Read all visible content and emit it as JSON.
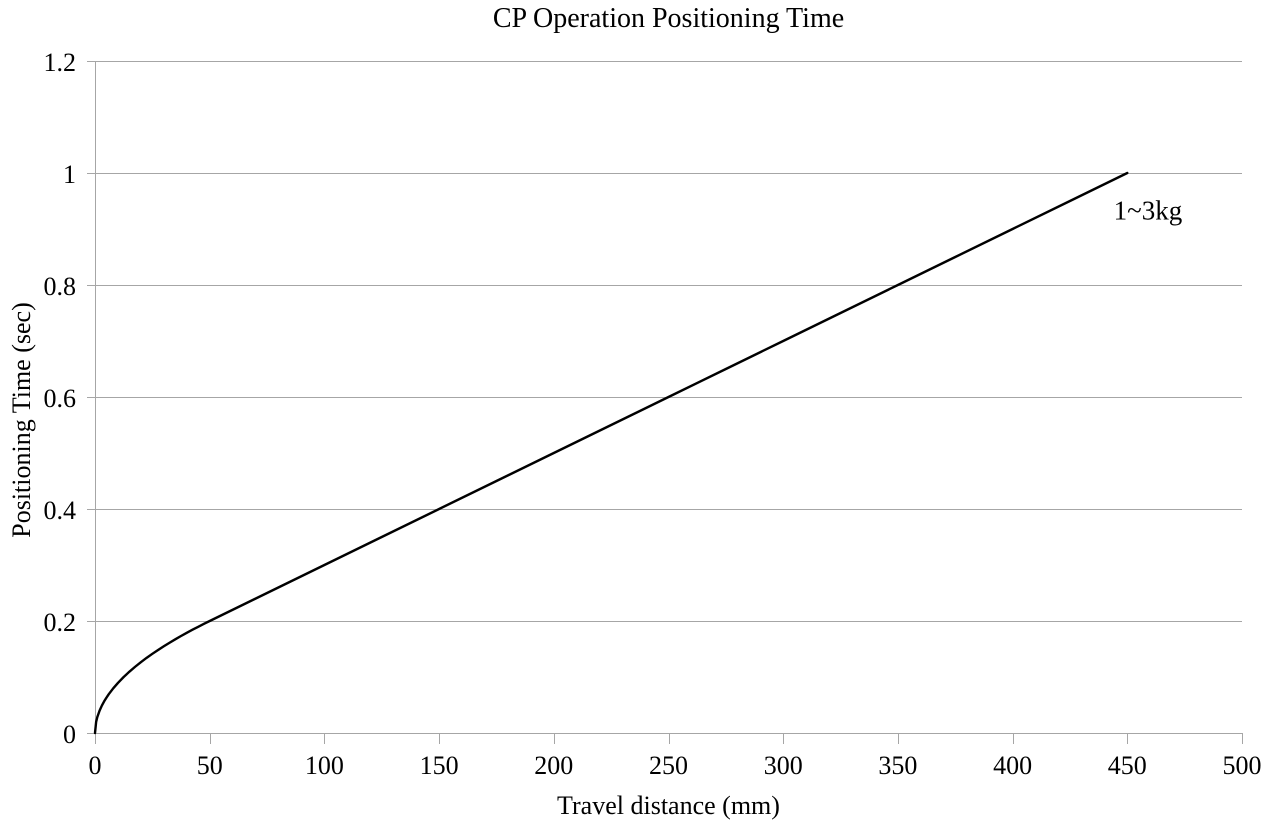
{
  "chart_data": {
    "type": "line",
    "title": "CP Operation Positioning Time",
    "xlabel": "Travel distance (mm)",
    "ylabel": "Positioning Time (sec)",
    "xlim": [
      0,
      500
    ],
    "ylim": [
      0,
      1.2
    ],
    "xticks": [
      0,
      50,
      100,
      150,
      200,
      250,
      300,
      350,
      400,
      450,
      500
    ],
    "xtick_labels": [
      "0",
      "50",
      "100",
      "150",
      "200",
      "250",
      "300",
      "350",
      "400",
      "450",
      "500"
    ],
    "yticks": [
      0,
      0.2,
      0.4,
      0.6,
      0.8,
      1,
      1.2
    ],
    "ytick_labels": [
      "0",
      "0.2",
      "0.4",
      "0.6",
      "0.8",
      "1",
      "1.2"
    ],
    "grid": "horizontal",
    "legend_position": "inline-annotation",
    "colors": {
      "grid": "#a6a6a6",
      "axis": "#a6a6a6",
      "text": "#000000",
      "background": "#ffffff"
    },
    "series": [
      {
        "name": "1~3kg",
        "color": "#000000",
        "points": [
          [
            0,
            0
          ],
          [
            0.5,
            0.02
          ],
          [
            1,
            0.0283
          ],
          [
            2,
            0.04
          ],
          [
            3,
            0.049
          ],
          [
            4,
            0.0566
          ],
          [
            5,
            0.0632
          ],
          [
            6,
            0.0693
          ],
          [
            8,
            0.08
          ],
          [
            10,
            0.0894
          ],
          [
            12.5,
            0.1
          ],
          [
            15,
            0.1095
          ],
          [
            17.5,
            0.1183
          ],
          [
            20,
            0.1265
          ],
          [
            22.5,
            0.1342
          ],
          [
            25,
            0.1414
          ],
          [
            27.5,
            0.1483
          ],
          [
            30,
            0.1549
          ],
          [
            32.5,
            0.1612
          ],
          [
            35,
            0.1673
          ],
          [
            37.5,
            0.1732
          ],
          [
            40,
            0.1789
          ],
          [
            42.5,
            0.1844
          ],
          [
            45,
            0.1897
          ],
          [
            47.5,
            0.1949
          ],
          [
            50,
            0.2
          ],
          [
            75,
            0.25
          ],
          [
            100,
            0.3
          ],
          [
            125,
            0.35
          ],
          [
            150,
            0.4
          ],
          [
            175,
            0.45
          ],
          [
            200,
            0.5
          ],
          [
            225,
            0.55
          ],
          [
            250,
            0.6
          ],
          [
            275,
            0.65
          ],
          [
            300,
            0.7
          ],
          [
            325,
            0.75
          ],
          [
            350,
            0.8
          ],
          [
            375,
            0.85
          ],
          [
            400,
            0.9
          ],
          [
            425,
            0.95
          ],
          [
            450,
            1.0
          ]
        ]
      }
    ],
    "annotation": {
      "text": "1~3kg",
      "x": 459,
      "y": 0.932
    }
  }
}
